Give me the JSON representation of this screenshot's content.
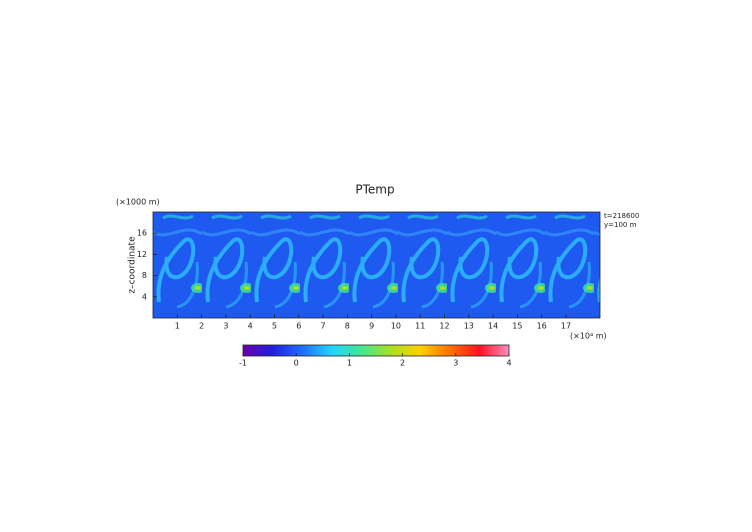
{
  "chart_data": {
    "type": "contour",
    "title": "PTemp",
    "x_label": "(×10⁴ m)",
    "y_label": "z–coordinate",
    "y_unit": "(×1000 m)",
    "annotations": [
      "t=218600",
      "y=100 m"
    ],
    "xlim": [
      0,
      18.4
    ],
    "xticks": [
      1,
      2,
      3,
      4,
      5,
      6,
      7,
      8,
      9,
      10,
      11,
      12,
      13,
      14,
      15,
      16,
      17
    ],
    "ylim": [
      0,
      20
    ],
    "yticks": [
      4,
      8,
      12,
      16
    ],
    "colorbar": {
      "lim": [
        -1,
        4
      ],
      "ticks": [
        -1,
        0,
        1,
        2,
        3,
        4
      ],
      "colormap": [
        "#6a00a8",
        "#2020e0",
        "#1e6cff",
        "#22d4ff",
        "#40e890",
        "#a8e020",
        "#ffd000",
        "#ff7000",
        "#ff1020",
        "#ff90c0"
      ]
    }
  }
}
